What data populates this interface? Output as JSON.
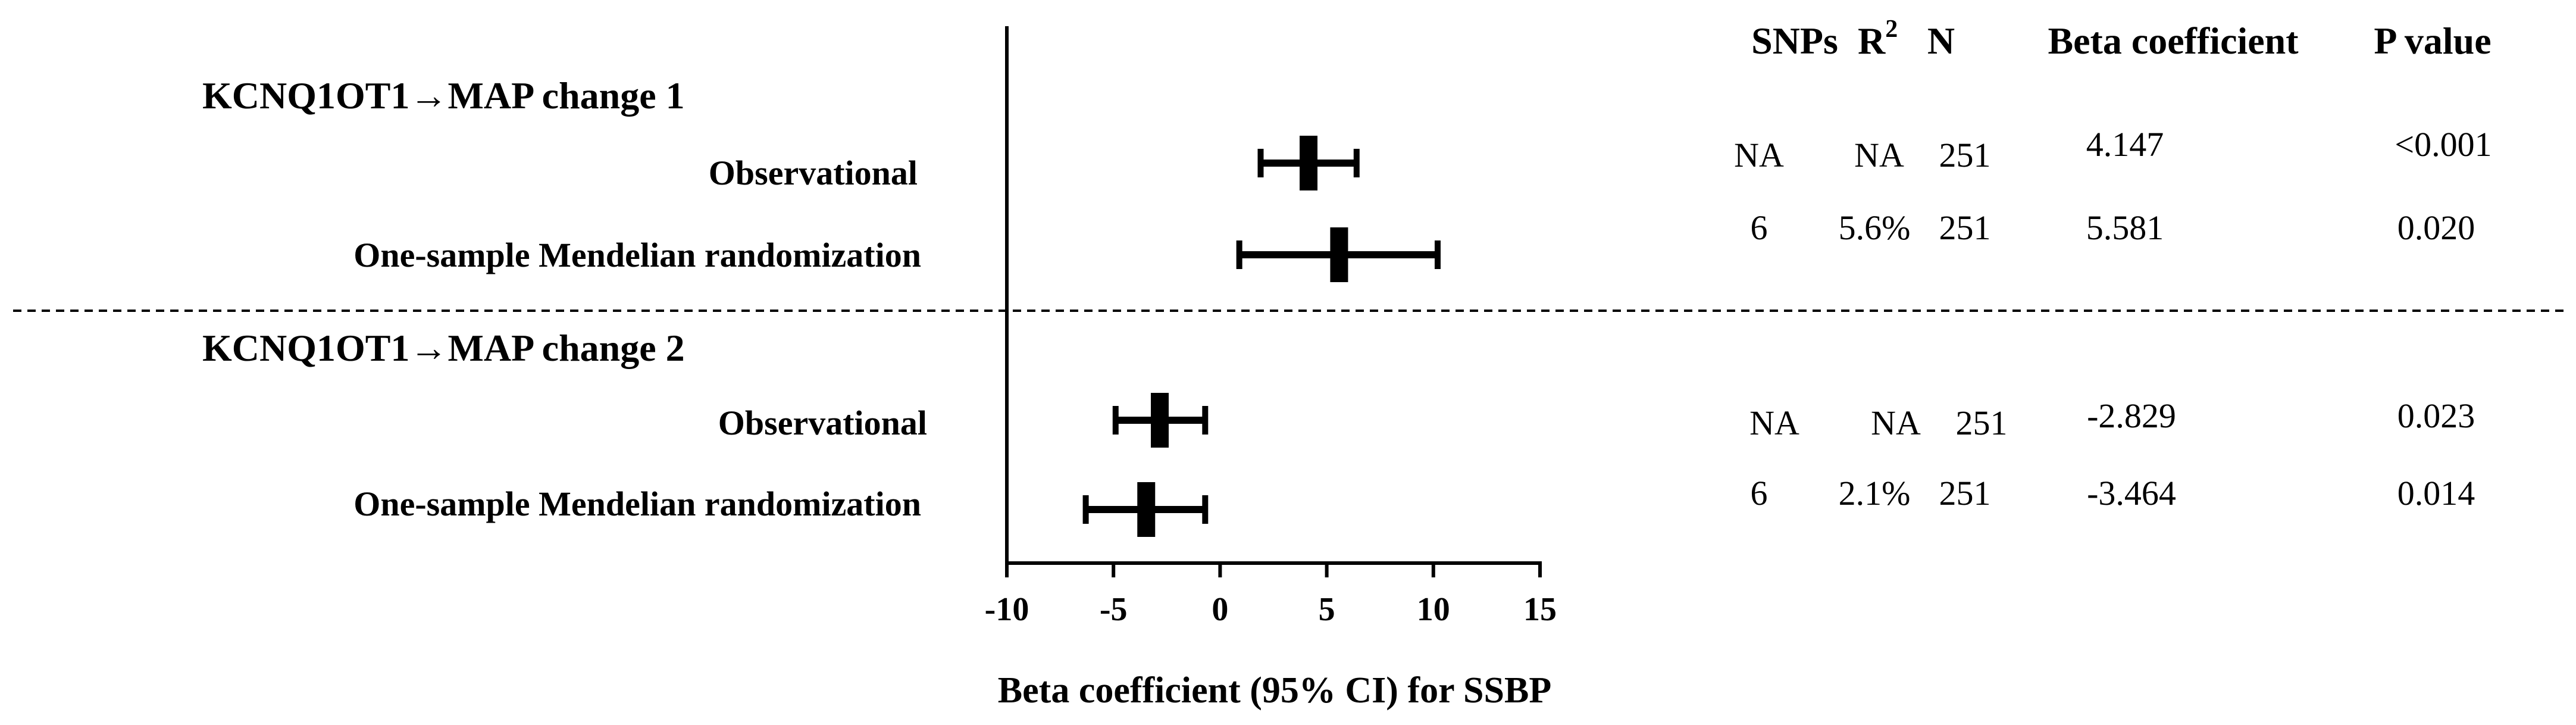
{
  "chart_data": {
    "type": "forest",
    "xlabel": "Beta coefficient (95% CI) for SSBP",
    "xlim": [
      -10,
      15
    ],
    "x_ticks": [
      -10,
      -5,
      0,
      5,
      10,
      15
    ],
    "columns": {
      "snps": "SNPs",
      "r2": "R",
      "r2_sup": "2",
      "n": "N",
      "beta": "Beta coefficient",
      "p": "P value"
    },
    "groups": [
      {
        "title": "KCNQ1OT1→MAP change 1",
        "rows": [
          {
            "label": "Observational",
            "snps": "NA",
            "r2": "NA",
            "n": "251",
            "beta": "4.147",
            "p": "<0.001",
            "estimate": 4.147,
            "ci_low": 1.9,
            "ci_high": 6.4
          },
          {
            "label": "One-sample Mendelian randomization",
            "snps": "6",
            "r2": "5.6%",
            "n": "251",
            "beta": "5.581",
            "p": "0.020",
            "estimate": 5.581,
            "ci_low": 0.9,
            "ci_high": 10.2
          }
        ]
      },
      {
        "title": "KCNQ1OT1→MAP change 2",
        "rows": [
          {
            "label": "Observational",
            "snps": "NA",
            "r2": "NA",
            "n": "251",
            "beta": "-2.829",
            "p": "0.023",
            "estimate": -2.829,
            "ci_low": -4.9,
            "ci_high": -0.7
          },
          {
            "label": "One-sample Mendelian randomization",
            "snps": "6",
            "r2": "2.1%",
            "n": "251",
            "beta": "-3.464",
            "p": "0.014",
            "estimate": -3.464,
            "ci_low": -6.3,
            "ci_high": -0.7
          }
        ]
      }
    ]
  }
}
